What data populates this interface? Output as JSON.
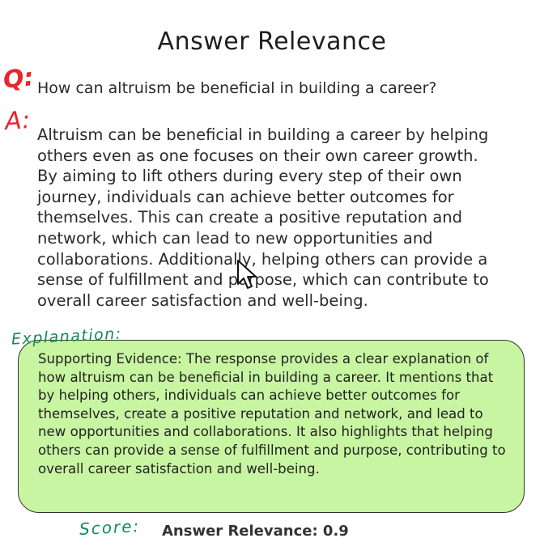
{
  "title": "Answer Relevance",
  "annotations": {
    "q_mark": "Q:",
    "a_mark": "A:",
    "explanation_mark": "Explanation:",
    "score_mark": "Score:"
  },
  "question": "How can altruism be beneficial in building a career?",
  "answer": "Altruism can be beneficial in building a career by helping others even as one focuses on their own career growth. By aiming to lift others during every step of their own journey, individuals can achieve better outcomes for themselves. This can create a positive reputation and network, which can lead to new opportunities and collaborations. Additionally, helping others can provide a sense of fulfillment and purpose, which can contribute to overall career satisfaction and well-being.",
  "explanation": "Supporting Evidence: The response provides a clear explanation of how altruism can be beneficial in building a career. It mentions that by helping others, individuals can achieve better outcomes for themselves, create a positive reputation and network, and lead to new opportunities and collaborations. It also highlights that helping others can provide a sense of fulfillment and purpose, contributing to overall career satisfaction and well-being.",
  "score_text": "Answer Relevance: 0.9",
  "colors": {
    "annotation_red": "#e8262b",
    "annotation_green": "#148a52",
    "evidence_fill": "#c8f5a2"
  },
  "icons": {
    "cursor": "mouse-pointer-icon"
  }
}
